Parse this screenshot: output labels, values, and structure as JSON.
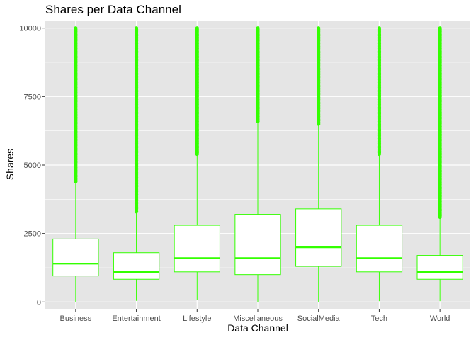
{
  "chart_data": {
    "type": "box",
    "title": "Shares per Data Channel",
    "xlabel": "Data Channel",
    "ylabel": "Shares",
    "ylim": [
      -250,
      10250
    ],
    "yticks": [
      0,
      2500,
      5000,
      7500,
      10000
    ],
    "yticklabels": [
      "0",
      "2500",
      "5000",
      "7500",
      "10000"
    ],
    "grid": true,
    "legend": "none",
    "colors": {
      "box": "#33ff00",
      "fill": "#ffffff",
      "panel": "#e5e5e5",
      "grid": "#ffffff"
    },
    "categories": [
      "Business",
      "Entertainment",
      "Lifestyle",
      "Miscellaneous",
      "SocialMedia",
      "Tech",
      "World"
    ],
    "boxes": [
      {
        "category": "Business",
        "whisker_low": 0,
        "q1": 950,
        "median": 1400,
        "q3": 2300,
        "whisker_high": 4400,
        "outliers_from": 4400,
        "outliers_to": 10000
      },
      {
        "category": "Entertainment",
        "whisker_low": 40,
        "q1": 830,
        "median": 1100,
        "q3": 1800,
        "whisker_high": 3300,
        "outliers_from": 3300,
        "outliers_to": 10000
      },
      {
        "category": "Lifestyle",
        "whisker_low": 80,
        "q1": 1100,
        "median": 1600,
        "q3": 2800,
        "whisker_high": 5400,
        "outliers_from": 5400,
        "outliers_to": 10000
      },
      {
        "category": "Miscellaneous",
        "whisker_low": 0,
        "q1": 1000,
        "median": 1600,
        "q3": 3200,
        "whisker_high": 6600,
        "outliers_from": 6600,
        "outliers_to": 10000
      },
      {
        "category": "SocialMedia",
        "whisker_low": 0,
        "q1": 1300,
        "median": 2000,
        "q3": 3400,
        "whisker_high": 6500,
        "outliers_from": 6500,
        "outliers_to": 10000
      },
      {
        "category": "Tech",
        "whisker_low": 30,
        "q1": 1100,
        "median": 1600,
        "q3": 2800,
        "whisker_high": 5400,
        "outliers_from": 5400,
        "outliers_to": 10000
      },
      {
        "category": "World",
        "whisker_low": 30,
        "q1": 830,
        "median": 1100,
        "q3": 1700,
        "whisker_high": 3100,
        "outliers_from": 3100,
        "outliers_to": 10000
      }
    ]
  }
}
